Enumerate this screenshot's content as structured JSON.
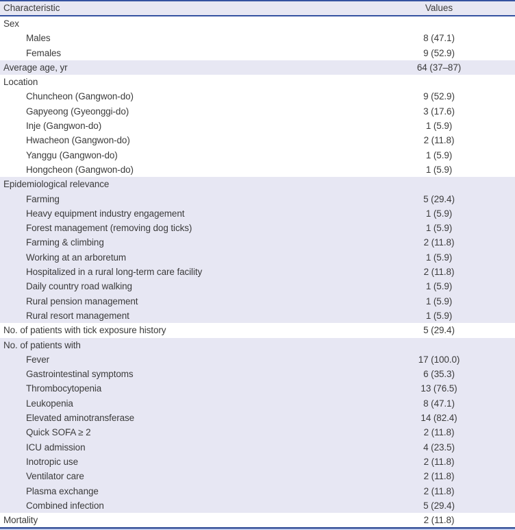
{
  "table": {
    "header": {
      "characteristic": "Characteristic",
      "values": "Values"
    },
    "rows": [
      {
        "label": "Sex",
        "value": "",
        "indent": 0,
        "shaded": false
      },
      {
        "label": "Males",
        "value": "8 (47.1)",
        "indent": 1,
        "shaded": false
      },
      {
        "label": "Females",
        "value": "9 (52.9)",
        "indent": 1,
        "shaded": false
      },
      {
        "label": "Average age, yr",
        "value": "64 (37–87)",
        "indent": 0,
        "shaded": true
      },
      {
        "label": "Location",
        "value": "",
        "indent": 0,
        "shaded": false
      },
      {
        "label": "Chuncheon (Gangwon-do)",
        "value": "9 (52.9)",
        "indent": 1,
        "shaded": false
      },
      {
        "label": "Gapyeong (Gyeonggi-do)",
        "value": "3 (17.6)",
        "indent": 1,
        "shaded": false
      },
      {
        "label": "Inje (Gangwon-do)",
        "value": "1 (5.9)",
        "indent": 1,
        "shaded": false
      },
      {
        "label": "Hwacheon (Gangwon-do)",
        "value": "2 (11.8)",
        "indent": 1,
        "shaded": false
      },
      {
        "label": "Yanggu (Gangwon-do)",
        "value": "1 (5.9)",
        "indent": 1,
        "shaded": false
      },
      {
        "label": "Hongcheon (Gangwon-do)",
        "value": "1 (5.9)",
        "indent": 1,
        "shaded": false
      },
      {
        "label": "Epidemiological relevance",
        "value": "",
        "indent": 0,
        "shaded": true
      },
      {
        "label": "Farming",
        "value": "5 (29.4)",
        "indent": 1,
        "shaded": true
      },
      {
        "label": "Heavy equipment industry engagement",
        "value": "1 (5.9)",
        "indent": 1,
        "shaded": true
      },
      {
        "label": "Forest management (removing dog ticks)",
        "value": "1 (5.9)",
        "indent": 1,
        "shaded": true
      },
      {
        "label": "Farming & climbing",
        "value": "2 (11.8)",
        "indent": 1,
        "shaded": true
      },
      {
        "label": "Working at an arboretum",
        "value": "1 (5.9)",
        "indent": 1,
        "shaded": true
      },
      {
        "label": "Hospitalized in a rural long-term care facility",
        "value": "2 (11.8)",
        "indent": 1,
        "shaded": true
      },
      {
        "label": "Daily country road walking",
        "value": "1 (5.9)",
        "indent": 1,
        "shaded": true
      },
      {
        "label": "Rural pension management",
        "value": "1 (5.9)",
        "indent": 1,
        "shaded": true
      },
      {
        "label": "Rural resort management",
        "value": "1 (5.9)",
        "indent": 1,
        "shaded": true
      },
      {
        "label": "No. of patients with tick exposure history",
        "value": "5 (29.4)",
        "indent": 0,
        "shaded": false
      },
      {
        "label": "No. of patients with",
        "value": "",
        "indent": 0,
        "shaded": true
      },
      {
        "label": "Fever",
        "value": "17 (100.0)",
        "indent": 1,
        "shaded": true
      },
      {
        "label": "Gastrointestinal symptoms",
        "value": "6 (35.3)",
        "indent": 1,
        "shaded": true
      },
      {
        "label": "Thrombocytopenia",
        "value": "13 (76.5)",
        "indent": 1,
        "shaded": true
      },
      {
        "label": "Leukopenia",
        "value": "8 (47.1)",
        "indent": 1,
        "shaded": true
      },
      {
        "label": "Elevated aminotransferase",
        "value": "14 (82.4)",
        "indent": 1,
        "shaded": true
      },
      {
        "label": "Quick SOFA ≥ 2",
        "value": "2 (11.8)",
        "indent": 1,
        "shaded": true
      },
      {
        "label": "ICU admission",
        "value": "4 (23.5)",
        "indent": 1,
        "shaded": true
      },
      {
        "label": "Inotropic use",
        "value": "2 (11.8)",
        "indent": 1,
        "shaded": true
      },
      {
        "label": "Ventilator care",
        "value": "2 (11.8)",
        "indent": 1,
        "shaded": true
      },
      {
        "label": "Plasma exchange",
        "value": "2 (11.8)",
        "indent": 1,
        "shaded": true
      },
      {
        "label": "Combined infection",
        "value": "5 (29.4)",
        "indent": 1,
        "shaded": true
      },
      {
        "label": "Mortality",
        "value": "2 (11.8)",
        "indent": 0,
        "shaded": false
      }
    ],
    "colors": {
      "header_fill": "#e7e7f3",
      "shaded_row_fill": "#e7e7f3",
      "rule_blue": "#3452a0",
      "bottom_rule_dark": "#1e3c8c",
      "bottom_rule_light": "#bdc9eb",
      "text": "#3b3b3b"
    }
  }
}
